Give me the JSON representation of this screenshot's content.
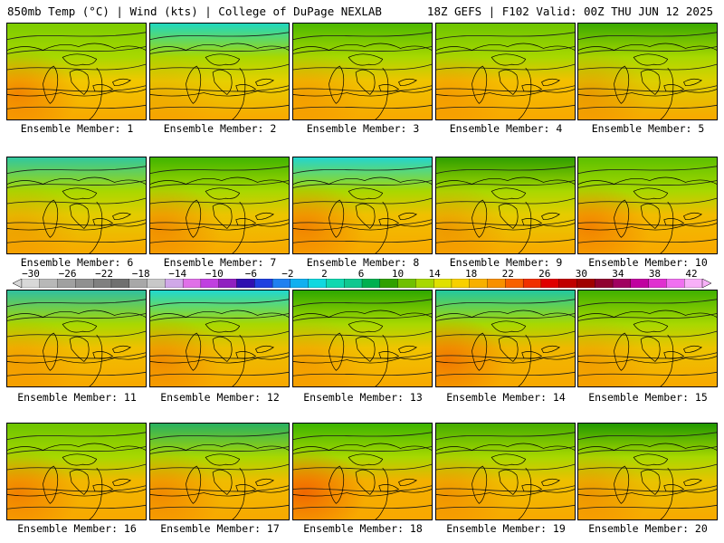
{
  "header": {
    "left": "850mb Temp (°C) | Wind (kts) | College of DuPage NEXLAB",
    "right": "18Z GEFS | F102 Valid: 00Z THU JUN 12 2025"
  },
  "members": [
    {
      "label": "Ensemble Member: 1",
      "tint": "#f2c800",
      "north": "#7ccc00",
      "hot": 0.6
    },
    {
      "label": "Ensemble Member: 2",
      "tint": "#e6d000",
      "north": "#1fd8c0",
      "hot": 0.2
    },
    {
      "label": "Ensemble Member: 3",
      "tint": "#f0c400",
      "north": "#4cb800",
      "hot": 0.3
    },
    {
      "label": "Ensemble Member: 4",
      "tint": "#f4c000",
      "north": "#6cc400",
      "hot": 0.3
    },
    {
      "label": "Ensemble Member: 5",
      "tint": "#dcd000",
      "north": "#3aa800",
      "hot": 0.4
    },
    {
      "label": "Ensemble Member: 6",
      "tint": "#e4cc00",
      "north": "#30c8a0",
      "hot": 0.3
    },
    {
      "label": "Ensemble Member: 7",
      "tint": "#ecc400",
      "north": "#40b400",
      "hot": 0.5
    },
    {
      "label": "Ensemble Member: 8",
      "tint": "#f0c000",
      "north": "#22d6d0",
      "hot": 0.6
    },
    {
      "label": "Ensemble Member: 9",
      "tint": "#e6cc00",
      "north": "#2e9e00",
      "hot": 0.4
    },
    {
      "label": "Ensemble Member: 10",
      "tint": "#f2bc00",
      "north": "#5cc000",
      "hot": 0.6
    },
    {
      "label": "Ensemble Member: 11",
      "tint": "#f0c000",
      "north": "#30c0a0",
      "hot": 0.3
    },
    {
      "label": "Ensemble Member: 12",
      "tint": "#ecc000",
      "north": "#20d8d0",
      "hot": 0.5
    },
    {
      "label": "Ensemble Member: 13",
      "tint": "#f0c400",
      "north": "#2ea800",
      "hot": 0.3
    },
    {
      "label": "Ensemble Member: 14",
      "tint": "#f0b800",
      "north": "#22c8a0",
      "hot": 0.7
    },
    {
      "label": "Ensemble Member: 15",
      "tint": "#ecc400",
      "north": "#40b000",
      "hot": 0.3
    },
    {
      "label": "Ensemble Member: 16",
      "tint": "#f2b800",
      "north": "#6cc400",
      "hot": 0.6
    },
    {
      "label": "Ensemble Member: 17",
      "tint": "#f0bc00",
      "north": "#28b060",
      "hot": 0.5
    },
    {
      "label": "Ensemble Member: 18",
      "tint": "#f4b000",
      "north": "#3cb400",
      "hot": 0.9
    },
    {
      "label": "Ensemble Member: 19",
      "tint": "#eec000",
      "north": "#44ac00",
      "hot": 0.4
    },
    {
      "label": "Ensemble Member: 20",
      "tint": "#e8c400",
      "north": "#209800",
      "hot": 0.4
    }
  ],
  "colorbar": {
    "labels": [
      "−30",
      "−26",
      "−22",
      "−18",
      "−14",
      "−10",
      "−6",
      "−2",
      "2",
      "6",
      "10",
      "14",
      "18",
      "22",
      "26",
      "30",
      "34",
      "38",
      "42"
    ],
    "colors": [
      "#d8d8d8",
      "#b8b8b8",
      "#a0a0a0",
      "#909090",
      "#808080",
      "#707070",
      "#a8a8a8",
      "#c8c8c8",
      "#d0a8e8",
      "#e070e8",
      "#c040e0",
      "#9020c0",
      "#3010b0",
      "#2040e0",
      "#2080f0",
      "#10b0f0",
      "#10d8e0",
      "#10d8b0",
      "#10c890",
      "#00b050",
      "#30a000",
      "#70c000",
      "#a8d800",
      "#e0e000",
      "#f8d000",
      "#f8b000",
      "#f89000",
      "#f86000",
      "#f03000",
      "#e00000",
      "#c00000",
      "#a00000",
      "#900030",
      "#a00060",
      "#c000a0",
      "#e030d0",
      "#f070f0",
      "#f8b0f8"
    ]
  }
}
